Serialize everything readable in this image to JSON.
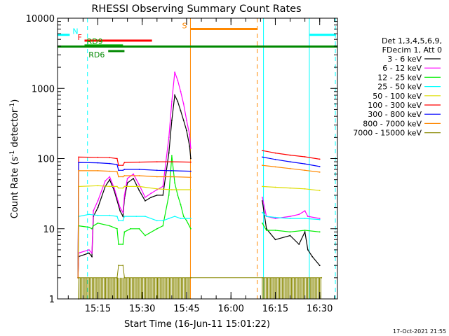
{
  "chart_data": {
    "type": "line",
    "title": "RHESSI Observing Summary Count Rates",
    "xlabel": "Start Time (16-Jun-11 15:01:22)",
    "ylabel_parts": [
      "Count Rate (s",
      "-1",
      " detector",
      "-1",
      ")"
    ],
    "y_scale": "log",
    "ylim": [
      1,
      10000
    ],
    "xlim_minutes": [
      901.37,
      996.0
    ],
    "x_ticks": [
      {
        "m": 915,
        "label": "15:15"
      },
      {
        "m": 930,
        "label": "15:30"
      },
      {
        "m": 945,
        "label": "15:45"
      },
      {
        "m": 960,
        "label": "16:00"
      },
      {
        "m": 975,
        "label": "16:15"
      },
      {
        "m": 990,
        "label": "16:30"
      }
    ],
    "y_ticks": [
      {
        "v": 1,
        "label": "1"
      },
      {
        "v": 10,
        "label": "10"
      },
      {
        "v": 100,
        "label": "100"
      },
      {
        "v": 1000,
        "label": "1000"
      },
      {
        "v": 10000,
        "label": "10000"
      }
    ],
    "legend_header": [
      "Det 1,3,4,5,6,9,",
      "FDecim 1, Att 0"
    ],
    "series": [
      {
        "name": "3 - 6 keV",
        "color": "#000000",
        "points": [
          [
            908.3,
            2
          ],
          [
            908.5,
            4
          ],
          [
            912.0,
            4.5
          ],
          [
            913.0,
            4
          ],
          [
            913.5,
            15
          ],
          [
            915.0,
            20
          ],
          [
            917.5,
            40
          ],
          [
            919.0,
            50
          ],
          [
            920.5,
            35
          ],
          [
            922.5,
            18
          ],
          [
            923.5,
            15
          ],
          [
            924.0,
            27
          ],
          [
            925.0,
            45
          ],
          [
            927.0,
            52
          ],
          [
            929.0,
            35
          ],
          [
            931.0,
            25
          ],
          [
            933.0,
            28
          ],
          [
            935.0,
            30
          ],
          [
            937.0,
            30
          ],
          [
            939.0,
            120
          ],
          [
            940.0,
            350
          ],
          [
            941.0,
            800
          ],
          [
            942.0,
            650
          ],
          [
            943.0,
            480
          ],
          [
            944.0,
            350
          ],
          [
            945.0,
            250
          ],
          [
            946.0,
            150
          ],
          [
            946.4,
            100
          ],
          [
            970.0,
            null
          ],
          [
            970.6,
            25
          ],
          [
            972.0,
            10
          ],
          [
            975.0,
            7
          ],
          [
            980.0,
            8
          ],
          [
            983.0,
            6
          ],
          [
            985.0,
            9
          ],
          [
            986.0,
            5
          ],
          [
            987.5,
            4
          ],
          [
            990.0,
            3
          ],
          [
            990.6,
            null
          ]
        ]
      },
      {
        "name": "6 - 12 keV",
        "color": "#ff00ff",
        "points": [
          [
            908.3,
            2
          ],
          [
            908.5,
            4.5
          ],
          [
            912.0,
            5
          ],
          [
            913.0,
            4.5
          ],
          [
            913.5,
            18
          ],
          [
            915.0,
            25
          ],
          [
            917.5,
            48
          ],
          [
            919.0,
            55
          ],
          [
            920.5,
            38
          ],
          [
            922.5,
            20
          ],
          [
            923.5,
            17
          ],
          [
            924.0,
            30
          ],
          [
            925.0,
            52
          ],
          [
            927.0,
            60
          ],
          [
            929.0,
            42
          ],
          [
            931.0,
            28
          ],
          [
            933.0,
            32
          ],
          [
            935.0,
            36
          ],
          [
            937.0,
            40
          ],
          [
            939.0,
            200
          ],
          [
            940.0,
            650
          ],
          [
            941.0,
            1700
          ],
          [
            942.0,
            1300
          ],
          [
            943.0,
            900
          ],
          [
            944.0,
            600
          ],
          [
            945.0,
            350
          ],
          [
            946.0,
            220
          ],
          [
            946.4,
            140
          ],
          [
            970.0,
            null
          ],
          [
            970.6,
            28
          ],
          [
            972.0,
            15
          ],
          [
            975.0,
            14
          ],
          [
            980.0,
            15
          ],
          [
            983.0,
            16
          ],
          [
            985.0,
            18
          ],
          [
            986.0,
            15
          ],
          [
            990.0,
            14
          ],
          [
            990.6,
            null
          ]
        ]
      },
      {
        "name": "12 - 25 keV",
        "color": "#00ee00",
        "points": [
          [
            908.3,
            2
          ],
          [
            908.5,
            11
          ],
          [
            912.0,
            10.5
          ],
          [
            913.0,
            10
          ],
          [
            913.5,
            11
          ],
          [
            915.0,
            12
          ],
          [
            919.0,
            11
          ],
          [
            921.5,
            10
          ],
          [
            922.0,
            6
          ],
          [
            923.5,
            6
          ],
          [
            924.0,
            9
          ],
          [
            926.0,
            10
          ],
          [
            929.0,
            10
          ],
          [
            931.0,
            8
          ],
          [
            935.0,
            10
          ],
          [
            937.0,
            11
          ],
          [
            939.0,
            30
          ],
          [
            940.0,
            110
          ],
          [
            941.0,
            45
          ],
          [
            942.0,
            30
          ],
          [
            943.0,
            22
          ],
          [
            944.0,
            15
          ],
          [
            945.0,
            13
          ],
          [
            946.4,
            10
          ],
          [
            970.0,
            null
          ],
          [
            970.6,
            12
          ],
          [
            972.0,
            9.5
          ],
          [
            975.0,
            9.5
          ],
          [
            980.0,
            9
          ],
          [
            985.0,
            9.5
          ],
          [
            990.0,
            9
          ],
          [
            990.6,
            null
          ]
        ]
      },
      {
        "name": "25 - 50 keV",
        "color": "#00ffff",
        "points": [
          [
            908.3,
            2
          ],
          [
            908.5,
            15
          ],
          [
            912.0,
            16
          ],
          [
            915.0,
            15.5
          ],
          [
            919.0,
            15.5
          ],
          [
            921.5,
            15
          ],
          [
            922.0,
            13
          ],
          [
            923.5,
            13
          ],
          [
            924.0,
            15
          ],
          [
            928.0,
            15
          ],
          [
            931.0,
            15
          ],
          [
            935.0,
            13
          ],
          [
            937.0,
            13
          ],
          [
            939.0,
            14
          ],
          [
            941.0,
            15
          ],
          [
            943.0,
            14
          ],
          [
            946.4,
            14
          ],
          [
            970.0,
            null
          ],
          [
            970.6,
            17
          ],
          [
            972.0,
            15
          ],
          [
            975.0,
            14.5
          ],
          [
            980.0,
            14
          ],
          [
            985.0,
            14
          ],
          [
            990.0,
            13.5
          ],
          [
            990.6,
            null
          ]
        ]
      },
      {
        "name": "50 - 100 keV",
        "color": "#dddd00",
        "points": [
          [
            908.3,
            2
          ],
          [
            908.5,
            40
          ],
          [
            915.0,
            41
          ],
          [
            919.0,
            40
          ],
          [
            921.5,
            40
          ],
          [
            922.0,
            38
          ],
          [
            923.5,
            38
          ],
          [
            924.0,
            40
          ],
          [
            929.0,
            40
          ],
          [
            935.0,
            37
          ],
          [
            940.0,
            36
          ],
          [
            946.4,
            36
          ],
          [
            970.0,
            null
          ],
          [
            970.6,
            40
          ],
          [
            975.0,
            39
          ],
          [
            980.0,
            38
          ],
          [
            985.0,
            37
          ],
          [
            990.0,
            35
          ],
          [
            990.6,
            null
          ]
        ]
      },
      {
        "name": "100 - 300 keV",
        "color": "#ff0000",
        "points": [
          [
            908.3,
            2
          ],
          [
            908.5,
            105
          ],
          [
            915.0,
            104
          ],
          [
            919.0,
            103
          ],
          [
            921.5,
            100
          ],
          [
            922.0,
            80
          ],
          [
            923.5,
            80
          ],
          [
            924.0,
            88
          ],
          [
            929.0,
            89
          ],
          [
            935.0,
            90
          ],
          [
            940.0,
            90
          ],
          [
            946.4,
            89
          ],
          [
            970.0,
            null
          ],
          [
            970.6,
            130
          ],
          [
            975.0,
            120
          ],
          [
            980.0,
            112
          ],
          [
            985.0,
            106
          ],
          [
            990.0,
            98
          ],
          [
            990.6,
            null
          ]
        ]
      },
      {
        "name": "300 - 800 keV",
        "color": "#0000ff",
        "points": [
          [
            908.3,
            2
          ],
          [
            908.5,
            88
          ],
          [
            915.0,
            87
          ],
          [
            919.0,
            85
          ],
          [
            921.5,
            82
          ],
          [
            922.0,
            68
          ],
          [
            923.5,
            68
          ],
          [
            924.0,
            70
          ],
          [
            929.0,
            70
          ],
          [
            935.0,
            68
          ],
          [
            940.0,
            67
          ],
          [
            946.4,
            66
          ],
          [
            970.0,
            null
          ],
          [
            970.6,
            105
          ],
          [
            975.0,
            97
          ],
          [
            980.0,
            90
          ],
          [
            985.0,
            84
          ],
          [
            990.0,
            77
          ],
          [
            990.6,
            null
          ]
        ]
      },
      {
        "name": "800 - 7000 keV",
        "color": "#ff8800",
        "points": [
          [
            908.3,
            2
          ],
          [
            908.5,
            67
          ],
          [
            915.0,
            67
          ],
          [
            919.0,
            66
          ],
          [
            921.5,
            65
          ],
          [
            922.0,
            55
          ],
          [
            923.5,
            55
          ],
          [
            924.0,
            57
          ],
          [
            929.0,
            57
          ],
          [
            935.0,
            55
          ],
          [
            940.0,
            55
          ],
          [
            946.4,
            54
          ],
          [
            970.0,
            null
          ],
          [
            970.6,
            80
          ],
          [
            975.0,
            76
          ],
          [
            980.0,
            72
          ],
          [
            985.0,
            68
          ],
          [
            990.0,
            64
          ],
          [
            990.6,
            null
          ]
        ]
      },
      {
        "name": "7000 - 15000 keV",
        "color": "#888800",
        "points": [
          [
            908.5,
            1
          ],
          [
            908.6,
            2
          ],
          [
            921.5,
            2
          ],
          [
            922.0,
            3
          ],
          [
            923.5,
            3
          ],
          [
            924.0,
            2
          ],
          [
            946.4,
            2
          ],
          [
            970.6,
            2
          ],
          [
            990.6,
            2
          ]
        ]
      }
    ],
    "state_bars": [
      {
        "label": "N",
        "color": "#00ffff",
        "segments": [
          [
            901.37,
            905.5
          ],
          [
            904.5,
            904.6
          ],
          [
            986.5,
            995.5
          ]
        ],
        "level": 5800
      },
      {
        "label": "F",
        "color": "#ff0000",
        "segments": [
          [
            910.5,
            933.3
          ]
        ],
        "level": 4800
      },
      {
        "label": "S",
        "color": "#ff8800",
        "segments": [
          [
            946.3,
            969.0
          ]
        ],
        "level": 7000
      },
      {
        "label": "RD9",
        "color": "#00aa00",
        "segments": [
          [
            910.5,
            923.5
          ]
        ],
        "level": 4100
      },
      {
        "label": "RD6",
        "color": "#008800",
        "segments": [
          [
            918.5,
            924.0
          ]
        ],
        "level": 3400
      },
      {
        "label": "",
        "color": "#008800",
        "segments": [
          [
            901.37,
            996.0
          ]
        ],
        "level": 3950
      }
    ],
    "vlines": [
      {
        "m": 901.37,
        "color": "#00ffff",
        "dash": false
      },
      {
        "m": 911.5,
        "color": "#00ffff",
        "dash": true
      },
      {
        "m": 946.3,
        "color": "#ff8800",
        "dash": false
      },
      {
        "m": 968.9,
        "color": "#ff8800",
        "dash": true
      },
      {
        "m": 971.0,
        "color": "#00ffff",
        "dash": false
      },
      {
        "m": 986.5,
        "color": "#00ffff",
        "dash": false
      },
      {
        "m": 995.3,
        "color": "#00ffff",
        "dash": true
      }
    ],
    "timestamp": "17-Oct-2021 21:55"
  }
}
